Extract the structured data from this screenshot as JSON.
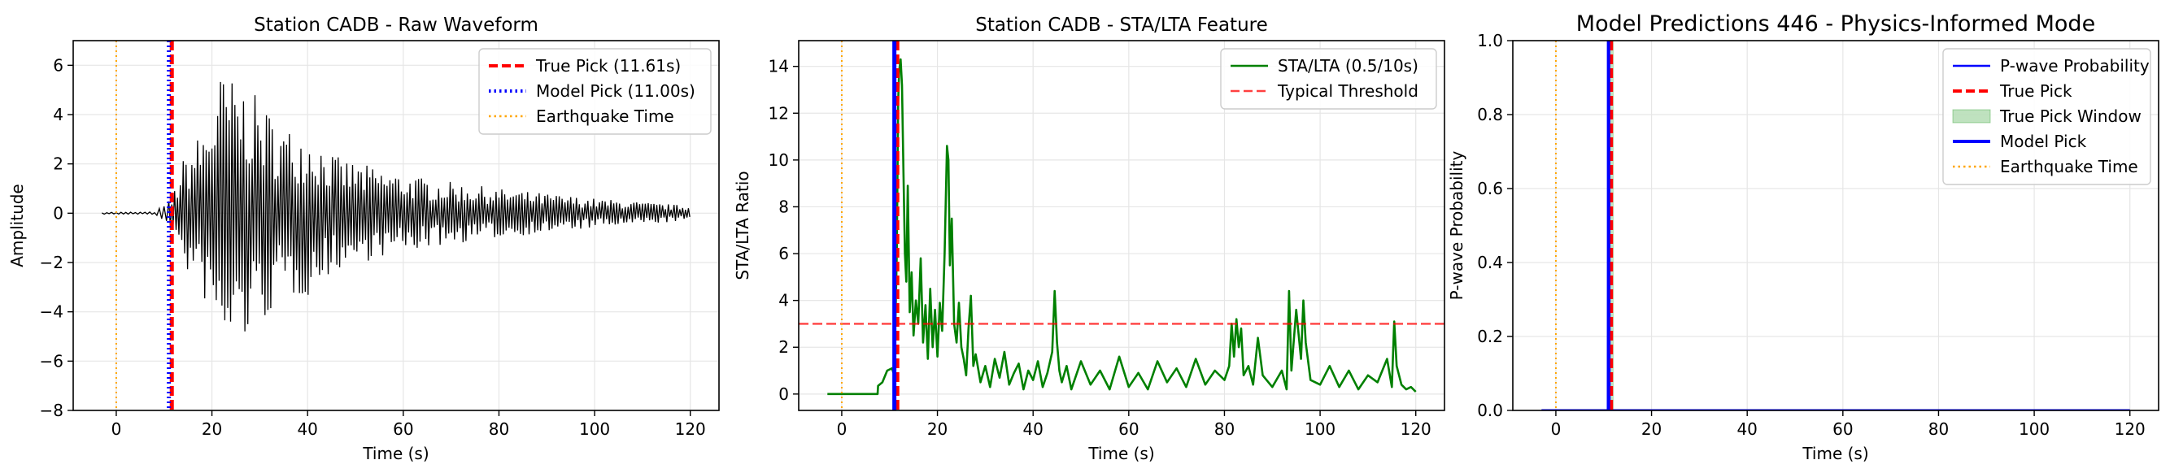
{
  "chart_data": [
    {
      "type": "line",
      "title": "Station CADB - Raw Waveform",
      "xlabel": "Time (s)",
      "ylabel": "Amplitude",
      "xlim": [
        -9,
        126
      ],
      "ylim": [
        -8,
        7
      ],
      "xticks": [
        0,
        20,
        40,
        60,
        80,
        100,
        120
      ],
      "yticks": [
        -8,
        -6,
        -4,
        -2,
        0,
        2,
        4,
        6
      ],
      "grid": true,
      "legend_position": "top-right",
      "series": [
        {
          "name": "",
          "style": "waveform",
          "color": "#000000",
          "envelope": {
            "x": [
              -3,
              8,
              11.6,
              14,
              16,
              19,
              22,
              24,
              27,
              30,
              35,
              40,
              46,
              55,
              65,
              80,
              100,
              120
            ],
            "amp": [
              0.04,
              0.05,
              0.6,
              2.2,
              2.8,
              3.8,
              5.8,
              5.5,
              5.2,
              4.6,
              3.5,
              3.4,
              2.3,
              1.8,
              1.4,
              1.0,
              0.6,
              0.3
            ]
          }
        },
        {
          "name": "True Pick (11.61s)",
          "kind": "vline",
          "x": 11.61,
          "color": "#ff0000",
          "style": "dashed"
        },
        {
          "name": "Model Pick (11.00s)",
          "kind": "vline",
          "x": 11.0,
          "color": "#0000ff",
          "style": "dotted"
        },
        {
          "name": "Earthquake Time",
          "kind": "vline",
          "x": 0,
          "color": "#ffa500",
          "style": "dotted"
        }
      ]
    },
    {
      "type": "line",
      "title": "Station CADB - STA/LTA Feature",
      "xlabel": "Time (s)",
      "ylabel": "STA/LTA Ratio",
      "xlim": [
        -9,
        126
      ],
      "ylim": [
        -0.7,
        15.1
      ],
      "xticks": [
        0,
        20,
        40,
        60,
        80,
        100,
        120
      ],
      "yticks": [
        0,
        2,
        4,
        6,
        8,
        10,
        12,
        14
      ],
      "grid": true,
      "legend_position": "top-right",
      "series": [
        {
          "name": "STA/LTA (0.5/10s)",
          "color": "#008000",
          "x": [
            -3,
            7.5,
            7.6,
            8.5,
            9.5,
            10.5,
            11,
            11.5,
            11.8,
            12,
            12.3,
            12.6,
            12.9,
            13.2,
            13.5,
            13.8,
            14.2,
            14.6,
            15,
            15.5,
            16,
            16.5,
            17,
            17.5,
            18,
            18.5,
            19,
            19.5,
            20,
            20.5,
            21,
            21.5,
            22,
            22.3,
            22.6,
            23,
            23.5,
            24,
            24.5,
            25,
            25.5,
            26,
            26.5,
            27,
            27.5,
            28,
            29,
            30,
            31,
            32,
            33,
            34,
            35,
            36,
            37,
            38,
            39,
            40,
            41,
            42,
            43,
            44,
            44.5,
            45,
            45.5,
            46,
            47,
            48,
            49,
            50,
            52,
            54,
            56,
            58,
            60,
            62,
            64,
            66,
            68,
            70,
            72,
            74,
            76,
            78,
            80,
            81,
            81.5,
            82,
            82.5,
            83,
            83.5,
            84,
            85,
            86,
            87,
            88,
            90,
            92,
            93,
            93.5,
            94,
            95,
            96,
            96.5,
            97,
            98,
            100,
            102,
            104,
            106,
            108,
            110,
            112,
            114,
            115,
            115.5,
            116,
            117,
            118,
            119,
            120
          ],
          "y": [
            0,
            0,
            0.35,
            0.5,
            1.0,
            1.1,
            0.8,
            6.0,
            12.5,
            13.8,
            14.3,
            13.2,
            9.5,
            6.0,
            4.8,
            8.9,
            3.5,
            5.2,
            2.5,
            4.0,
            3.0,
            5.8,
            2.2,
            3.8,
            1.5,
            4.5,
            2.0,
            3.6,
            1.6,
            3.9,
            2.7,
            6.0,
            10.6,
            10.0,
            5.5,
            7.5,
            3.0,
            2.2,
            3.9,
            2.0,
            1.5,
            0.8,
            2.8,
            4.2,
            1.2,
            1.7,
            0.5,
            1.2,
            0.3,
            1.5,
            0.7,
            1.8,
            0.4,
            0.9,
            1.3,
            0.2,
            1.0,
            0.6,
            1.4,
            0.3,
            0.9,
            1.8,
            4.4,
            2.2,
            1.0,
            0.5,
            1.2,
            0.2,
            0.8,
            1.4,
            0.4,
            1.0,
            0.2,
            1.6,
            0.3,
            0.9,
            0.2,
            1.4,
            0.5,
            1.1,
            0.3,
            1.5,
            0.4,
            1.0,
            0.6,
            1.2,
            3.0,
            1.6,
            3.2,
            2.0,
            2.8,
            0.8,
            1.2,
            0.4,
            2.4,
            0.8,
            0.3,
            1.0,
            0.2,
            4.4,
            1.0,
            3.6,
            1.5,
            4.0,
            2.2,
            0.6,
            0.4,
            1.2,
            0.3,
            1.0,
            0.2,
            0.8,
            0.5,
            1.5,
            0.3,
            3.1,
            1.2,
            0.4,
            0.2,
            0.3,
            0.1
          ]
        },
        {
          "name": "Typical Threshold",
          "kind": "hline",
          "y": 3,
          "color": "#ff0000",
          "style": "dashed"
        },
        {
          "name": "",
          "kind": "vline",
          "x": 11.61,
          "color": "#ff0000",
          "style": "dashed"
        },
        {
          "name": "",
          "kind": "vline",
          "x": 11.0,
          "color": "#0000ff",
          "style": "solid"
        },
        {
          "name": "",
          "kind": "vline",
          "x": 0,
          "color": "#ffa500",
          "style": "dotted"
        }
      ]
    },
    {
      "type": "line",
      "title": "Model Predictions 446 - Physics-Informed Mode",
      "xlabel": "Time (s)",
      "ylabel": "P-wave Probability",
      "xlim": [
        -9,
        126
      ],
      "ylim": [
        0,
        1
      ],
      "xticks": [
        0,
        20,
        40,
        60,
        80,
        100,
        120
      ],
      "yticks": [
        0.0,
        0.2,
        0.4,
        0.6,
        0.8,
        1.0
      ],
      "grid": true,
      "legend_position": "top-right",
      "series": [
        {
          "name": "P-wave Probability",
          "color": "#0000ff",
          "x": [
            -3,
            10.9,
            11.0,
            11.1,
            11.2,
            120
          ],
          "y": [
            0,
            0,
            0.55,
            1.0,
            0,
            0
          ]
        },
        {
          "name": "True Pick",
          "kind": "vline",
          "x": 11.61,
          "color": "#ff0000",
          "style": "dashed"
        },
        {
          "name": "True Pick Window",
          "kind": "vspan",
          "x0": 11.11,
          "x1": 12.11,
          "color": "#2ca02c"
        },
        {
          "name": "Model Pick",
          "kind": "vline",
          "x": 11.0,
          "color": "#0000ff",
          "style": "solid"
        },
        {
          "name": "Earthquake Time",
          "kind": "vline",
          "x": 0,
          "color": "#ffa500",
          "style": "dotted"
        }
      ]
    }
  ]
}
